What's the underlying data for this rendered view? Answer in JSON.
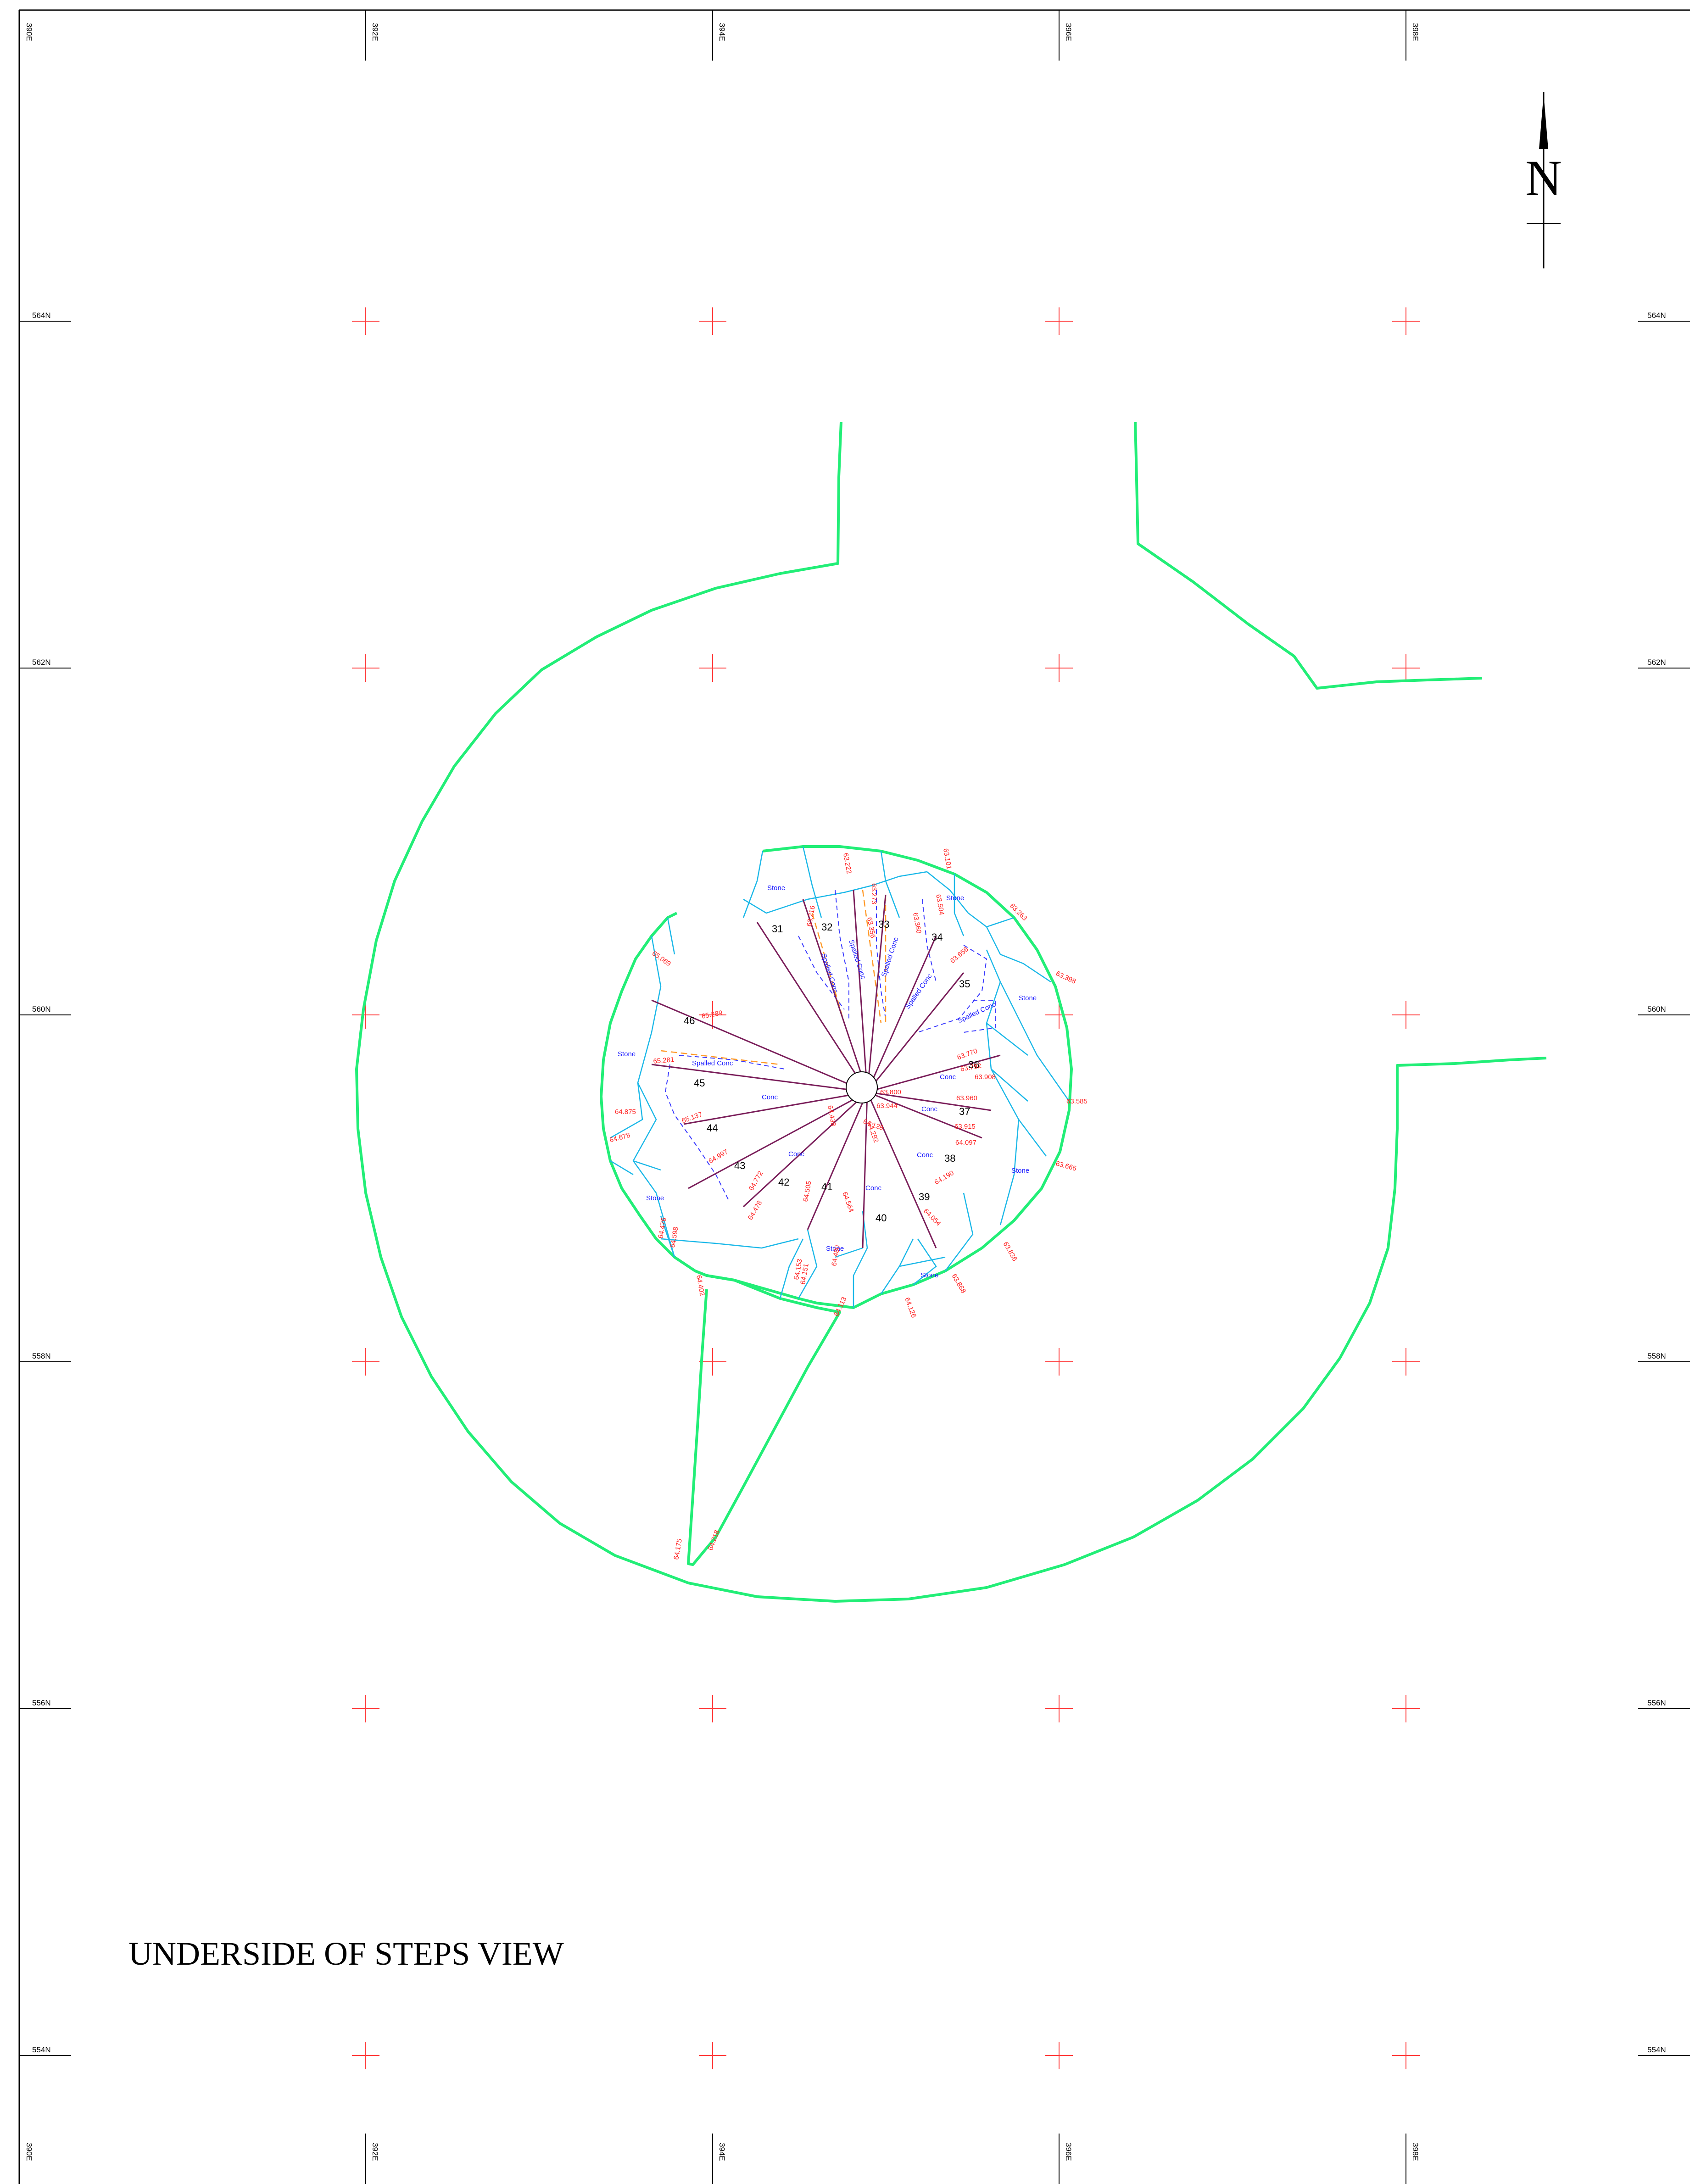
{
  "title": "UNDERSIDE OF STEPS VIEW",
  "north_label": "N",
  "colors": {
    "outline": "#22ee77",
    "stone_lines": "#1cb8e8",
    "elevations": "#ff2020",
    "materials": "#1a1aff",
    "step_edges": "#7a1e5a",
    "crosshair": "#ff3b3b",
    "frame": "#000000"
  },
  "grid": {
    "easting_labels": [
      "390E",
      "392E",
      "394E",
      "396E",
      "398E"
    ],
    "northing_labels": [
      "564N",
      "562N",
      "560N",
      "558N",
      "556N",
      "554N"
    ]
  },
  "steps": [
    "31",
    "32",
    "33",
    "34",
    "35",
    "36",
    "37",
    "38",
    "39",
    "40",
    "41",
    "42",
    "43",
    "44",
    "45",
    "46"
  ],
  "materials": {
    "stone": "Stone",
    "concrete": "Conc",
    "spalled": "Spalled Conc"
  },
  "elevations": [
    "63.222",
    "63.101",
    "63.263",
    "63.398",
    "63.585",
    "63.666",
    "63.836",
    "63.868",
    "64.054",
    "64.113",
    "64.126",
    "64.175",
    "64.218",
    "64.402",
    "64.476",
    "64.598",
    "64.678",
    "64.875",
    "65.069",
    "65.281",
    "65.289",
    "65.137",
    "64.997",
    "64.772",
    "64.478",
    "64.505",
    "64.480",
    "64.564",
    "64.438",
    "64.292",
    "64.128",
    "63.944",
    "63.800",
    "63.960",
    "63.908",
    "63.792",
    "63.770",
    "63.656",
    "63.504",
    "63.360",
    "63.356",
    "63.273",
    "63.216",
    "64.153",
    "64.151",
    "63.915",
    "64.097",
    "64.190"
  ]
}
